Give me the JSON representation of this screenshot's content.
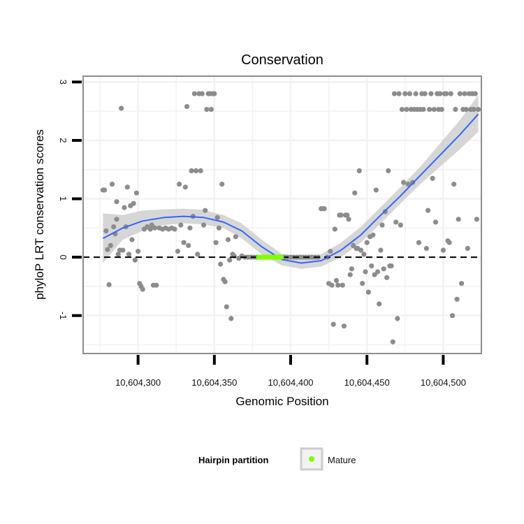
{
  "chart_data": {
    "type": "scatter",
    "title": "Conservation",
    "xlabel": "Genomic Position",
    "ylabel": "phyloP LRT conservation scores",
    "xlim": [
      10604264,
      10604525
    ],
    "ylim": [
      -1.65,
      3.1
    ],
    "x_ticks": [
      10604300,
      10604350,
      10604400,
      10604450,
      10604500
    ],
    "x_tick_labels": [
      "10,604,300",
      "10,604,350",
      "10,604,400",
      "10,604,450",
      "10,604,500"
    ],
    "y_ticks": [
      -1,
      0,
      1,
      2,
      3
    ],
    "y_tick_labels": [
      "-1",
      "0",
      "1",
      "2",
      "3"
    ],
    "grid": true,
    "reference_line": {
      "y": 0,
      "style": "dashed"
    },
    "colors": {
      "points": "#8c8c8c",
      "mature": "#7fff00",
      "smooth_line": "#3366ff",
      "ribbon": "#cccccc",
      "grid": "#f2f2f2",
      "panel_border": "#8c8c8c"
    },
    "series": [
      {
        "points": [
          [
            10604277,
            1.15
          ],
          [
            10604278,
            1.15
          ],
          [
            10604279,
            0.45
          ],
          [
            10604280,
            0.13
          ],
          [
            10604281,
            -0.47
          ],
          [
            10604282,
            0.2
          ],
          [
            10604283,
            1.25
          ],
          [
            10604284,
            0.52
          ],
          [
            10604285,
            0.4
          ],
          [
            10604286,
            0.65
          ],
          [
            10604286,
            0.95
          ],
          [
            10604287,
            0.05
          ],
          [
            10604288,
            0.12
          ],
          [
            10604289,
            2.55
          ],
          [
            10604290,
            0.12
          ],
          [
            10604291,
            0.85
          ],
          [
            10604292,
            0.52
          ],
          [
            10604293,
            1.2
          ],
          [
            10604294,
            0.05
          ],
          [
            10604295,
            0.88
          ],
          [
            10604296,
            0.3
          ],
          [
            10604297,
            0.92
          ],
          [
            10604298,
            -0.05
          ],
          [
            10604299,
            1.1
          ],
          [
            10604300,
            0.1
          ],
          [
            10604301,
            -0.45
          ],
          [
            10604302,
            -0.5
          ],
          [
            10604303,
            -0.55
          ],
          [
            10604304,
            0.48
          ],
          [
            10604306,
            0.52
          ],
          [
            10604308,
            0.48
          ],
          [
            10604309,
            0.55
          ],
          [
            10604310,
            -0.48
          ],
          [
            10604311,
            0.5
          ],
          [
            10604312,
            -0.48
          ],
          [
            10604314,
            0.5
          ],
          [
            10604316,
            0.48
          ],
          [
            10604318,
            0.5
          ],
          [
            10604320,
            0.48
          ],
          [
            10604322,
            0.5
          ],
          [
            10604324,
            0.48
          ],
          [
            10604326,
            0.1
          ],
          [
            10604327,
            1.25
          ],
          [
            10604328,
            0.55
          ],
          [
            10604330,
            0.25
          ],
          [
            10604331,
            1.2
          ],
          [
            10604332,
            2.58
          ],
          [
            10604333,
            0.2
          ],
          [
            10604334,
            0.5
          ],
          [
            10604335,
            1.48
          ],
          [
            10604336,
            0.7
          ],
          [
            10604337,
            2.8
          ],
          [
            10604338,
            1.48
          ],
          [
            10604339,
            0.05
          ],
          [
            10604340,
            2.8
          ],
          [
            10604341,
            1.48
          ],
          [
            10604342,
            2.8
          ],
          [
            10604343,
            0.55
          ],
          [
            10604344,
            0.8
          ],
          [
            10604345,
            2.53
          ],
          [
            10604346,
            2.8
          ],
          [
            10604347,
            2.8
          ],
          [
            10604348,
            2.53
          ],
          [
            10604349,
            2.8
          ],
          [
            10604350,
            2.8
          ],
          [
            10604351,
            0.25
          ],
          [
            10604352,
            0.68
          ],
          [
            10604353,
            0.5
          ],
          [
            10604354,
            -0.12
          ],
          [
            10604355,
            1.25
          ],
          [
            10604356,
            -0.38
          ],
          [
            10604357,
            -0.42
          ],
          [
            10604358,
            -0.85
          ],
          [
            10604359,
            0.3
          ],
          [
            10604360,
            -0.05
          ],
          [
            10604361,
            -1.05
          ],
          [
            10604362,
            0.05
          ],
          [
            10604363,
            0.02
          ],
          [
            10604364,
            0.35
          ],
          [
            10604366,
            -0.02
          ],
          [
            10604368,
            0.02
          ],
          [
            10604370,
            0.0
          ],
          [
            10604372,
            0.0
          ],
          [
            10604374,
            0.0
          ],
          [
            10604376,
            0.0
          ],
          [
            10604378,
            0.0
          ],
          [
            10604380,
            0.0
          ],
          [
            10604382,
            0.0
          ],
          [
            10604384,
            0.0
          ],
          [
            10604386,
            0.0
          ],
          [
            10604388,
            0.0
          ],
          [
            10604390,
            0.0
          ],
          [
            10604392,
            0.0
          ],
          [
            10604394,
            0.0
          ],
          [
            10604396,
            0.0
          ],
          [
            10604398,
            0.0
          ],
          [
            10604400,
            0.0
          ],
          [
            10604402,
            0.0
          ],
          [
            10604404,
            0.0
          ],
          [
            10604406,
            0.0
          ],
          [
            10604408,
            0.0
          ],
          [
            10604410,
            0.0
          ],
          [
            10604412,
            0.0
          ],
          [
            10604414,
            0.0
          ],
          [
            10604416,
            0.0
          ],
          [
            10604418,
            0.0
          ],
          [
            10604420,
            0.83
          ],
          [
            10604421,
            0.83
          ],
          [
            10604422,
            0.83
          ],
          [
            10604424,
            0.0
          ],
          [
            10604425,
            -0.45
          ],
          [
            10604426,
            0.1
          ],
          [
            10604427,
            -0.48
          ],
          [
            10604428,
            -1.15
          ],
          [
            10604429,
            0.48
          ],
          [
            10604430,
            -0.4
          ],
          [
            10604431,
            -0.48
          ],
          [
            10604432,
            0.72
          ],
          [
            10604433,
            0.72
          ],
          [
            10604434,
            -0.48
          ],
          [
            10604435,
            -1.18
          ],
          [
            10604436,
            0.72
          ],
          [
            10604437,
            0.72
          ],
          [
            10604438,
            0.65
          ],
          [
            10604439,
            -0.3
          ],
          [
            10604440,
            -0.2
          ],
          [
            10604441,
            0.2
          ],
          [
            10604442,
            1.1
          ],
          [
            10604443,
            0.15
          ],
          [
            10604444,
            0.15
          ],
          [
            10604445,
            1.48
          ],
          [
            10604446,
            0.12
          ],
          [
            10604447,
            -0.45
          ],
          [
            10604448,
            0.05
          ],
          [
            10604449,
            -0.25
          ],
          [
            10604450,
            0.25
          ],
          [
            10604451,
            -0.6
          ],
          [
            10604452,
            0.35
          ],
          [
            10604453,
            -0.15
          ],
          [
            10604454,
            0.38
          ],
          [
            10604455,
            -0.3
          ],
          [
            10604456,
            1.15
          ],
          [
            10604457,
            -0.25
          ],
          [
            10604458,
            -0.8
          ],
          [
            10604459,
            0.12
          ],
          [
            10604460,
            0.55
          ],
          [
            10604461,
            -0.2
          ],
          [
            10604462,
            0.78
          ],
          [
            10604463,
            -0.35
          ],
          [
            10604464,
            1.48
          ],
          [
            10604465,
            -0.15
          ],
          [
            10604466,
            -0.15
          ],
          [
            10604467,
            -1.45
          ],
          [
            10604468,
            2.8
          ],
          [
            10604469,
            0.6
          ],
          [
            10604470,
            -1.05
          ],
          [
            10604471,
            2.8
          ],
          [
            10604472,
            0.55
          ],
          [
            10604473,
            2.53
          ],
          [
            10604474,
            1.28
          ],
          [
            10604475,
            2.8
          ],
          [
            10604476,
            2.53
          ],
          [
            10604477,
            1.25
          ],
          [
            10604478,
            2.8
          ],
          [
            10604479,
            2.53
          ],
          [
            10604480,
            1.28
          ],
          [
            10604481,
            2.53
          ],
          [
            10604482,
            2.8
          ],
          [
            10604483,
            2.53
          ],
          [
            10604484,
            0.25
          ],
          [
            10604485,
            2.53
          ],
          [
            10604486,
            2.8
          ],
          [
            10604487,
            2.53
          ],
          [
            10604488,
            2.8
          ],
          [
            10604489,
            0.15
          ],
          [
            10604490,
            0.8
          ],
          [
            10604491,
            2.53
          ],
          [
            10604492,
            2.8
          ],
          [
            10604493,
            1.35
          ],
          [
            10604494,
            2.53
          ],
          [
            10604495,
            0.6
          ],
          [
            10604496,
            2.8
          ],
          [
            10604497,
            2.53
          ],
          [
            10604498,
            2.8
          ],
          [
            10604499,
            2.53
          ],
          [
            10604500,
            0.12
          ],
          [
            10604501,
            2.8
          ],
          [
            10604502,
            2.8
          ],
          [
            10604503,
            0.28
          ],
          [
            10604504,
            0.25
          ],
          [
            10604505,
            2.8
          ],
          [
            10604506,
            -1.0
          ],
          [
            10604507,
            1.25
          ],
          [
            10604508,
            2.53
          ],
          [
            10604509,
            -0.72
          ],
          [
            10604510,
            0.65
          ],
          [
            10604511,
            2.8
          ],
          [
            10604512,
            -0.45
          ],
          [
            10604513,
            2.53
          ],
          [
            10604514,
            2.8
          ],
          [
            10604515,
            2.53
          ],
          [
            10604516,
            0.15
          ],
          [
            10604517,
            2.8
          ],
          [
            10604518,
            2.53
          ],
          [
            10604519,
            2.8
          ],
          [
            10604520,
            2.53
          ],
          [
            10604521,
            2.8
          ],
          [
            10604522,
            0.65
          ],
          [
            10604523,
            2.53
          ]
        ]
      },
      {
        "name": "Mature",
        "points": [
          [
            10604379,
            0.0
          ],
          [
            10604380,
            0.0
          ],
          [
            10604381,
            0.0
          ],
          [
            10604382,
            0.0
          ],
          [
            10604383,
            0.0
          ],
          [
            10604384,
            0.0
          ],
          [
            10604385,
            0.0
          ],
          [
            10604386,
            0.0
          ],
          [
            10604387,
            0.0
          ],
          [
            10604388,
            0.0
          ],
          [
            10604389,
            0.0
          ],
          [
            10604390,
            0.0
          ],
          [
            10604391,
            0.0
          ],
          [
            10604392,
            0.0
          ],
          [
            10604393,
            0.0
          ],
          [
            10604394,
            0.0
          ]
        ]
      }
    ],
    "smooth": {
      "x": [
        10604277,
        10604290,
        10604303,
        10604317,
        10604330,
        10604343,
        10604356,
        10604368,
        10604381,
        10604394,
        10604407,
        10604420,
        10604433,
        10604446,
        10604459,
        10604472,
        10604485,
        10604498,
        10604511,
        10604523
      ],
      "y": [
        0.32,
        0.5,
        0.62,
        0.68,
        0.7,
        0.68,
        0.6,
        0.45,
        0.18,
        -0.04,
        -0.1,
        -0.06,
        0.12,
        0.38,
        0.72,
        1.05,
        1.4,
        1.75,
        2.1,
        2.45
      ],
      "lower": [
        -0.1,
        0.3,
        0.45,
        0.55,
        0.58,
        0.56,
        0.5,
        0.32,
        0.05,
        -0.14,
        -0.2,
        -0.16,
        0.0,
        0.25,
        0.58,
        0.92,
        1.25,
        1.55,
        1.85,
        2.15
      ],
      "upper": [
        0.75,
        0.72,
        0.8,
        0.82,
        0.83,
        0.81,
        0.72,
        0.58,
        0.3,
        0.06,
        0.0,
        0.05,
        0.25,
        0.52,
        0.86,
        1.2,
        1.55,
        1.95,
        2.35,
        2.78
      ]
    },
    "legend": {
      "title": "Hairpin partition",
      "entries": [
        {
          "label": "Mature",
          "color": "#7fff00"
        }
      ],
      "placement": "bottom"
    }
  }
}
